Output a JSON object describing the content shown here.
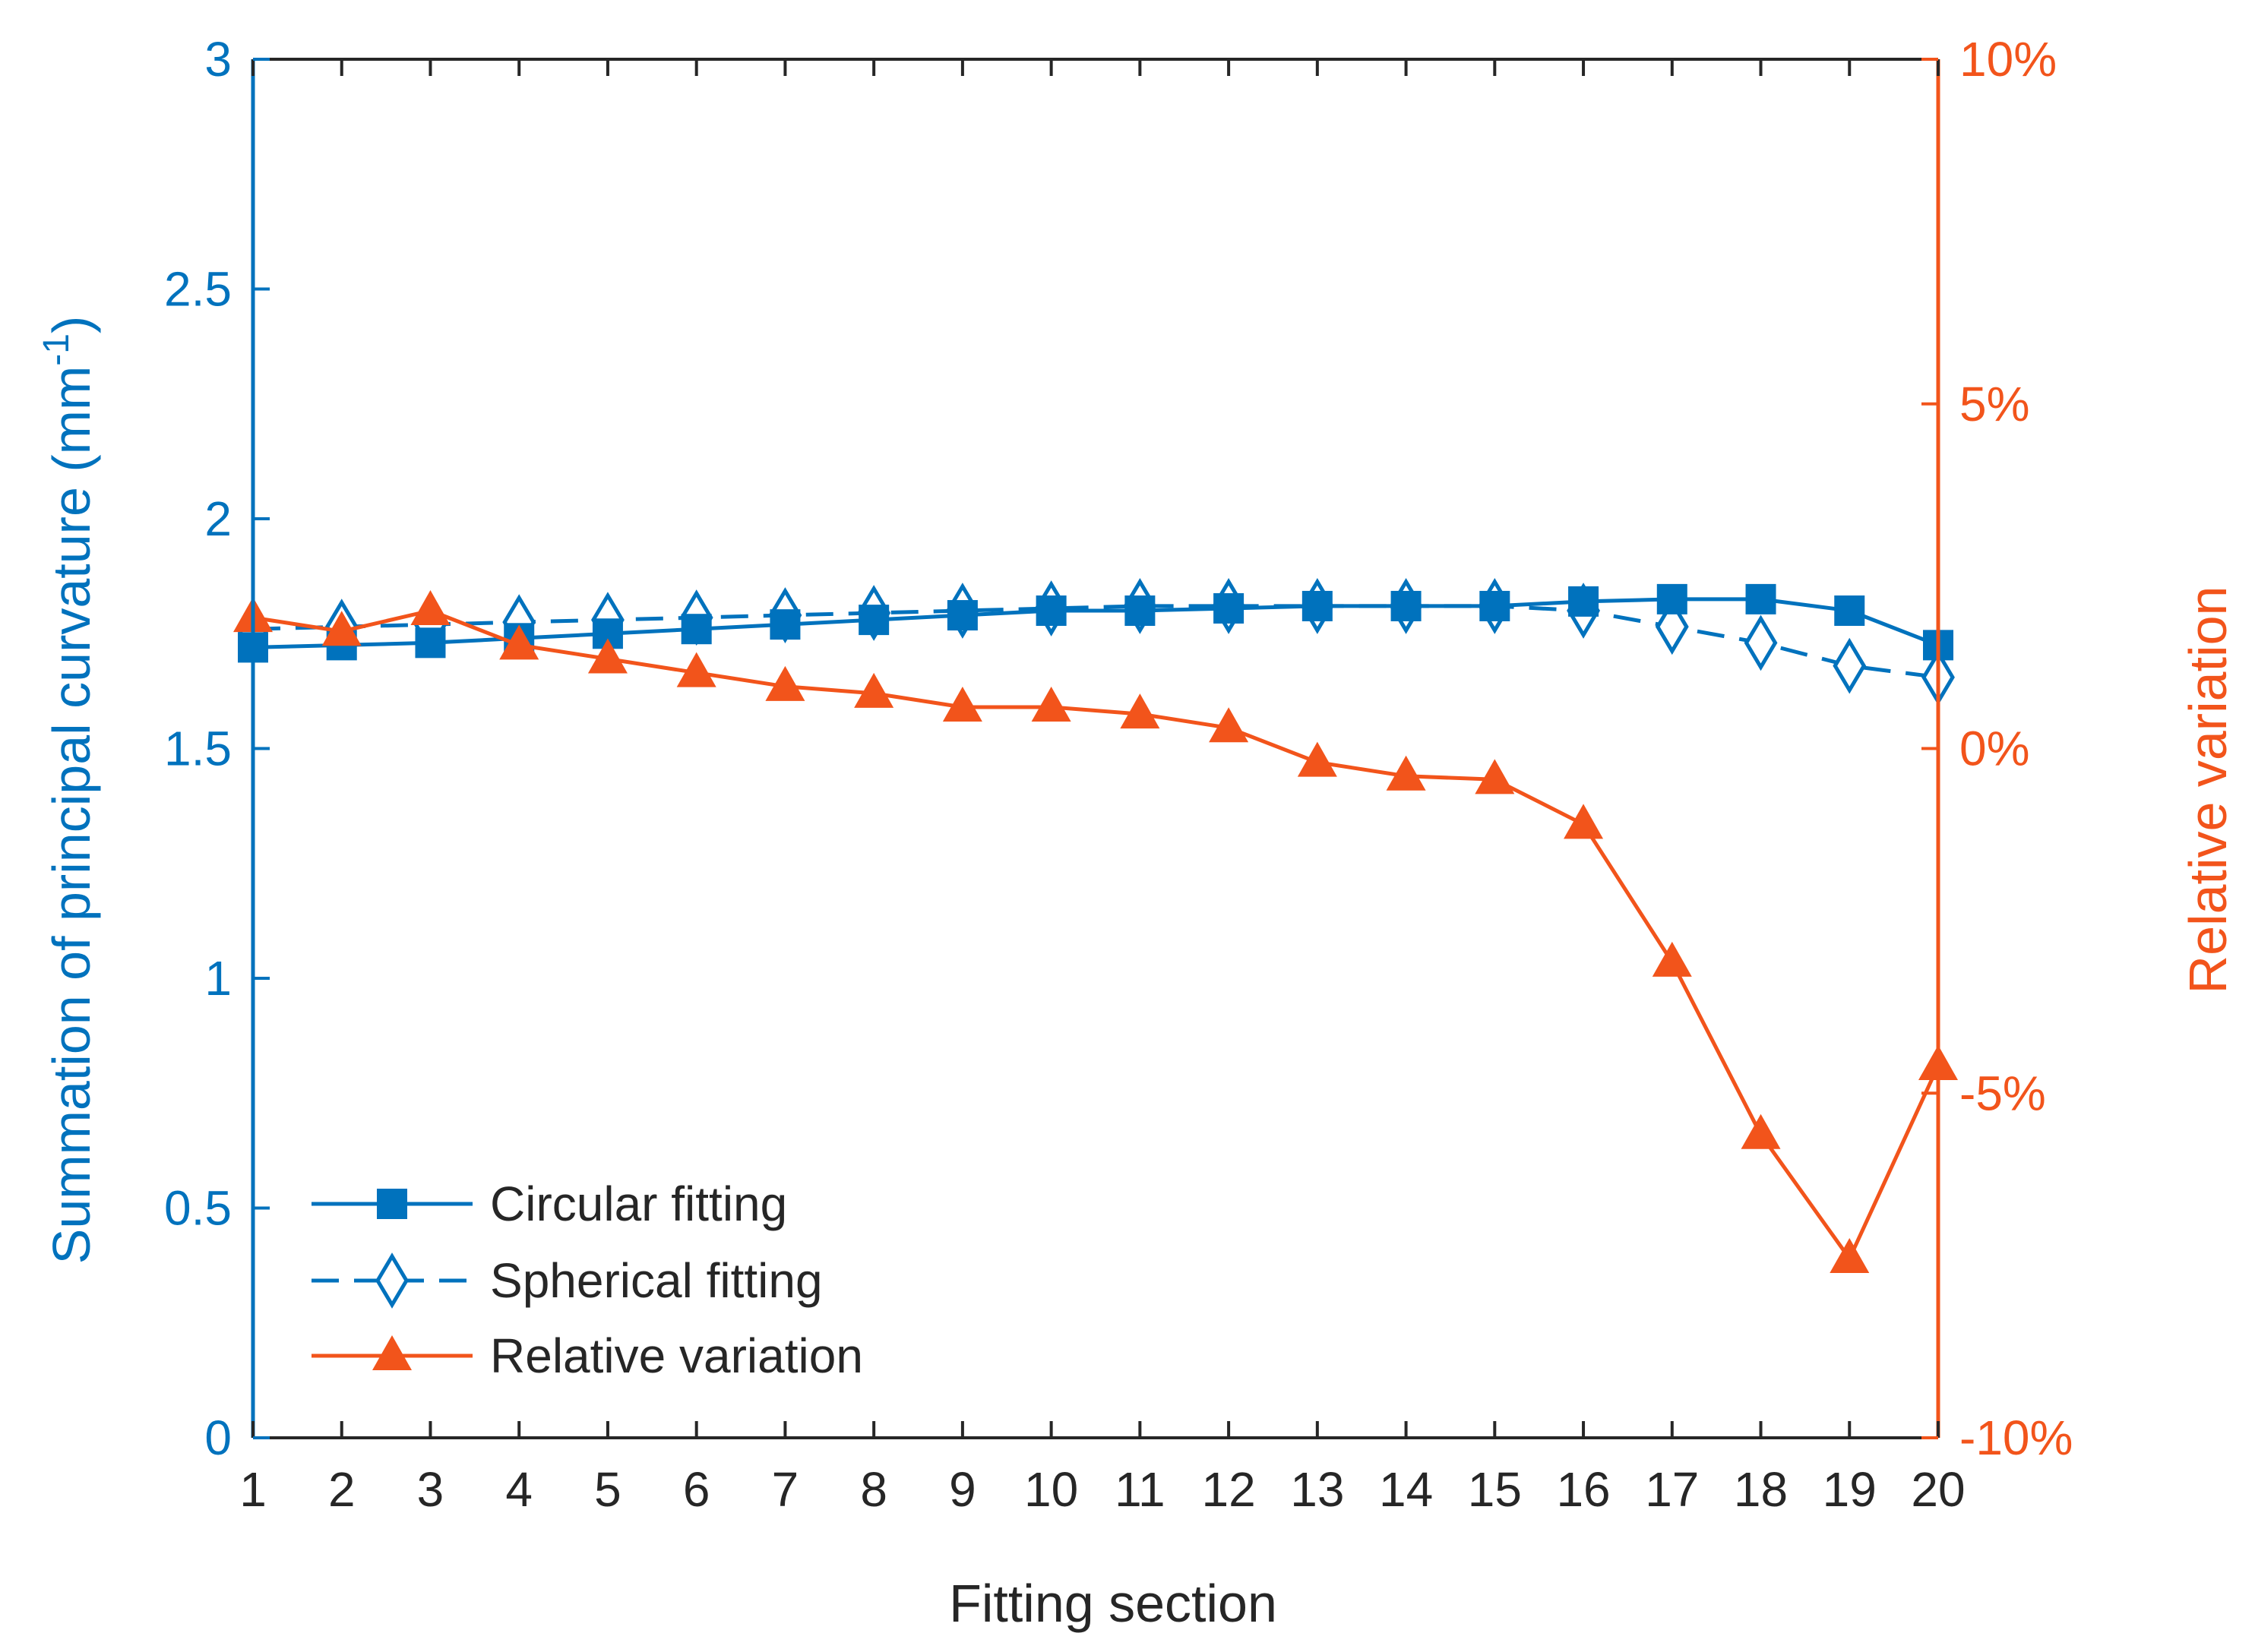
{
  "chart_data": {
    "type": "line",
    "xlabel": "Fitting section",
    "ylabel_left": "Summation of principal curvature (mm",
    "ylabel_left_sup": "-1",
    "ylabel_left_close": ")",
    "ylabel_right": "Relative variation",
    "x": [
      1,
      2,
      3,
      4,
      5,
      6,
      7,
      8,
      9,
      10,
      11,
      12,
      13,
      14,
      15,
      16,
      17,
      18,
      19,
      20
    ],
    "x_ticks": [
      "1",
      "2",
      "3",
      "4",
      "5",
      "6",
      "7",
      "8",
      "9",
      "10",
      "11",
      "12",
      "13",
      "14",
      "15",
      "16",
      "17",
      "18",
      "19",
      "20"
    ],
    "ylim_left": [
      0,
      3
    ],
    "yticks_left": [
      {
        "value": 0,
        "label": "0"
      },
      {
        "value": 0.5,
        "label": "0.5"
      },
      {
        "value": 1,
        "label": "1"
      },
      {
        "value": 1.5,
        "label": "1.5"
      },
      {
        "value": 2,
        "label": "2"
      },
      {
        "value": 2.5,
        "label": "2.5"
      },
      {
        "value": 3,
        "label": "3"
      }
    ],
    "ylim_right": [
      -10,
      10
    ],
    "yticks_right": [
      {
        "value": -10,
        "label": "-10%"
      },
      {
        "value": -5,
        "label": "-5%"
      },
      {
        "value": 0,
        "label": "0%"
      },
      {
        "value": 5,
        "label": "5%"
      },
      {
        "value": 10,
        "label": "10%"
      }
    ],
    "series": [
      {
        "name": "Circular fitting",
        "axis": "left",
        "color": "#0072BD",
        "style": "solid",
        "marker": "square",
        "values": [
          1.72,
          1.725,
          1.73,
          1.74,
          1.75,
          1.76,
          1.77,
          1.78,
          1.79,
          1.8,
          1.8,
          1.805,
          1.81,
          1.81,
          1.81,
          1.82,
          1.825,
          1.825,
          1.8,
          1.725
        ]
      },
      {
        "name": "Spherical fitting",
        "axis": "left",
        "color": "#0072BD",
        "style": "dashed",
        "marker": "diamond",
        "values": [
          1.76,
          1.765,
          1.77,
          1.775,
          1.78,
          1.785,
          1.79,
          1.795,
          1.8,
          1.805,
          1.81,
          1.81,
          1.81,
          1.81,
          1.81,
          1.8,
          1.765,
          1.73,
          1.68,
          1.655
        ]
      },
      {
        "name": "Relative variation",
        "axis": "right",
        "color": "#F2541B",
        "style": "solid",
        "marker": "triangle",
        "values": [
          1.9,
          1.7,
          2.0,
          1.5,
          1.3,
          1.1,
          0.9,
          0.8,
          0.6,
          0.6,
          0.5,
          0.3,
          -0.2,
          -0.4,
          -0.45,
          -1.1,
          -3.1,
          -5.6,
          -7.4,
          -4.6
        ]
      }
    ],
    "legend_position": "bottom-left"
  },
  "colors": {
    "left_axis": "#0072BD",
    "right_axis": "#F2541B",
    "frame": "#262626"
  }
}
